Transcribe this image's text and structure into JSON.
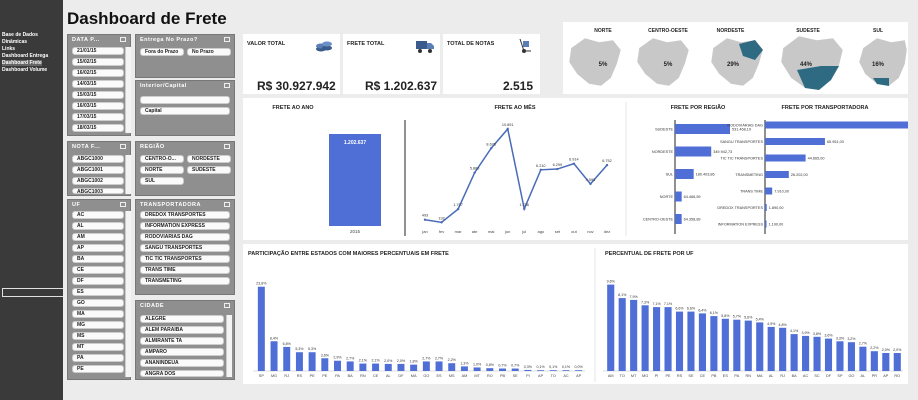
{
  "sidebar": {
    "items": [
      "Base de Dados",
      "Dinâmicas",
      "Links",
      "Dashboard Entrega",
      "Dashboard Frete",
      "Dashboard Volume"
    ]
  },
  "title": "Dashboard de Frete",
  "slicers": {
    "data": {
      "title": "DATA P...",
      "items": [
        "21/01/15",
        "15/02/15",
        "16/02/15",
        "14/03/15",
        "15/03/15",
        "16/03/15",
        "17/03/15",
        "18/03/15"
      ]
    },
    "entrega": {
      "title": "Entrega No Prazo?",
      "items": [
        "Fora do Prazo",
        "No Prazo"
      ]
    },
    "interior": {
      "title": "Interior/Capital",
      "items": [
        "",
        "Capital"
      ]
    },
    "nota": {
      "title": "NOTA F...",
      "items": [
        "ABGC1000",
        "ABGC1001",
        "ABGC1002",
        "ABGC1003"
      ]
    },
    "regiao": {
      "title": "REGIÃO",
      "items": [
        "CENTRO-O...",
        "NORDESTE",
        "NORTE",
        "SUDESTE",
        "SUL"
      ]
    },
    "uf": {
      "title": "UF",
      "items": [
        "AC",
        "AL",
        "AM",
        "AP",
        "BA",
        "CE",
        "DF",
        "ES",
        "GO",
        "MA",
        "MG",
        "MS",
        "MT",
        "PA",
        "PE"
      ]
    },
    "transp": {
      "title": "TRANSPORTADORA",
      "items": [
        "DREDOX TRANSPORTES",
        "INFORMATION EXPRESS",
        "RODOVIÁRIAS DAG",
        "SANGU TRANSPORTES",
        "TIC TIC TRANSPORTES",
        "TRANS TIME",
        "TRANSMETING"
      ]
    },
    "cidade": {
      "title": "CIDADE",
      "items": [
        "ALEGRE",
        "ALÉM PARAÍBA",
        "ALMIRANTE TA",
        "AMPARO",
        "ANANINDEUA",
        "ANGRA DOS"
      ]
    }
  },
  "kpis": [
    {
      "label": "VALOR TOTAL",
      "value": "R$ 30.927.942",
      "icon": "coins-icon"
    },
    {
      "label": "FRETE TOTAL",
      "value": "R$ 1.202.637",
      "icon": "truck-icon"
    },
    {
      "label": "TOTAL DE NOTAS",
      "value": "2.515",
      "icon": "hand-truck-icon"
    }
  ],
  "regions": [
    {
      "name": "NORTE",
      "pct": "5%"
    },
    {
      "name": "CENTRO-OESTE",
      "pct": "5%"
    },
    {
      "name": "NORDESTE",
      "pct": "29%"
    },
    {
      "name": "SUDESTE",
      "pct": "44%"
    },
    {
      "name": "SUL",
      "pct": "16%"
    }
  ],
  "colors": {
    "bar": "#4f6fd6",
    "map": "#2e6a82",
    "mapbg": "#c8c8c8",
    "sidebar": "#3a3a3a"
  },
  "chart_data": [
    {
      "type": "bar",
      "title": "FRETE AO ANO",
      "categories": [
        "2015"
      ],
      "values": [
        1202637
      ],
      "labels": [
        "1.202.637"
      ]
    },
    {
      "type": "line",
      "title": "FRETE AO MÊS",
      "categories": [
        "jan",
        "fev",
        "mar",
        "abr",
        "mai",
        "jun",
        "jul",
        "ago",
        "set",
        "out",
        "nov",
        "dez"
      ],
      "values": [
        493,
        192,
        1707,
        5880,
        8678,
        10891,
        1736,
        6210,
        6299,
        6914,
        4593,
        6752
      ],
      "labels": [
        "493",
        "192",
        "1.707",
        "5.880",
        "8.678",
        "10.891",
        "1.736",
        "6.210",
        "6.299",
        "6.914",
        "4.593",
        "6.752"
      ]
    },
    {
      "type": "bar",
      "orientation": "horizontal",
      "title": "FRETE POR REGIÃO",
      "categories": [
        "SUDESTE",
        "NORDESTE",
        "SUL",
        "NORTE",
        "CENTRO-OESTE"
      ],
      "values": [
        531468.19,
        349942.73,
        180403.86,
        64468.59,
        64358.89
      ],
      "labels": [
        "531.468,19",
        "349.942,73",
        "180.403,86",
        "64.468,59",
        "64.358,89"
      ]
    },
    {
      "type": "bar",
      "orientation": "horizontal",
      "title": "FRETE POR TRANSPORTADORA",
      "categories": [
        "RODOVIÁRIAS DAG",
        "SANGU TRANSPORTES",
        "TIC TIC TRANSPORTES",
        "TRANSMETING",
        "TRANS TIME",
        "DREDOX TRANSPORTES",
        "INFORMATION EXPRESS"
      ],
      "values": [
        165039,
        65951,
        44665,
        26202,
        7910,
        1890,
        1190
      ],
      "labels": [
        "165.039,00",
        "65.951,00",
        "44.665,00",
        "26.202,00",
        "7.910,00",
        "1.890,00",
        "1.190,00"
      ]
    },
    {
      "type": "bar",
      "title": "PARTICIPAÇÃO ENTRE ESTADOS COM MAIORES PERCENTUAIS EM FRETE",
      "categories": [
        "SP",
        "MG",
        "RJ",
        "RS",
        "PE",
        "PE",
        "PA",
        "BA",
        "RN",
        "CE",
        "AL",
        "DF",
        "MA",
        "GO",
        "ES",
        "MS",
        "AM",
        "MT",
        "RO",
        "PB",
        "SE",
        "PI",
        "AP",
        "TO",
        "AC",
        "AP"
      ],
      "values": [
        23.8,
        8.4,
        6.8,
        5.3,
        5.3,
        3.6,
        2.9,
        2.7,
        2.1,
        2.1,
        2.0,
        2.0,
        1.8,
        2.7,
        2.7,
        2.2,
        1.3,
        1.0,
        0.8,
        0.7,
        0.7,
        0.3,
        0.1,
        0.1,
        0.1,
        0.0
      ],
      "labels": [
        "23,8%",
        "8,4%",
        "6,8%",
        "5,3%",
        "5,3%",
        "3,6%",
        "2,9%",
        "2,7%",
        "2,1%",
        "2,1%",
        "2,0%",
        "2,0%",
        "1,8%",
        "2,7%",
        "2,7%",
        "2,2%",
        "1,3%",
        "1,0%",
        "0,8%",
        "0,7%",
        "0,7%",
        "0,3%",
        "0,1%",
        "0,1%",
        "0,1%",
        "0,0%"
      ]
    },
    {
      "type": "bar",
      "title": "PERCENTUAL DE FRETE POR UF",
      "categories": [
        "AM",
        "TO",
        "MT",
        "MG",
        "PI",
        "PE",
        "RS",
        "SE",
        "CE",
        "PB",
        "ES",
        "PA",
        "RN",
        "MA",
        "AL",
        "RJ",
        "BA",
        "AC",
        "SC",
        "DF",
        "SP",
        "GO",
        "AL",
        "PR",
        "AP",
        "RO"
      ],
      "values": [
        9.6,
        8.1,
        7.9,
        7.3,
        7.1,
        7.1,
        6.6,
        6.6,
        6.4,
        6.1,
        5.8,
        5.7,
        5.6,
        5.4,
        4.9,
        4.8,
        4.1,
        3.9,
        3.8,
        3.6,
        3.3,
        3.2,
        2.7,
        2.2,
        2.0,
        2.0
      ],
      "labels": [
        "9,6%",
        "8,1%",
        "7,9%",
        "7,3%",
        "7,1%",
        "7,1%",
        "6,6%",
        "6,6%",
        "6,4%",
        "6,1%",
        "5,8%",
        "5,7%",
        "5,6%",
        "5,4%",
        "4,9%",
        "4,8%",
        "4,1%",
        "3,9%",
        "3,8%",
        "3,6%",
        "3,3%",
        "3,2%",
        "2,7%",
        "2,2%",
        "2,0%",
        "2,0%"
      ]
    }
  ]
}
